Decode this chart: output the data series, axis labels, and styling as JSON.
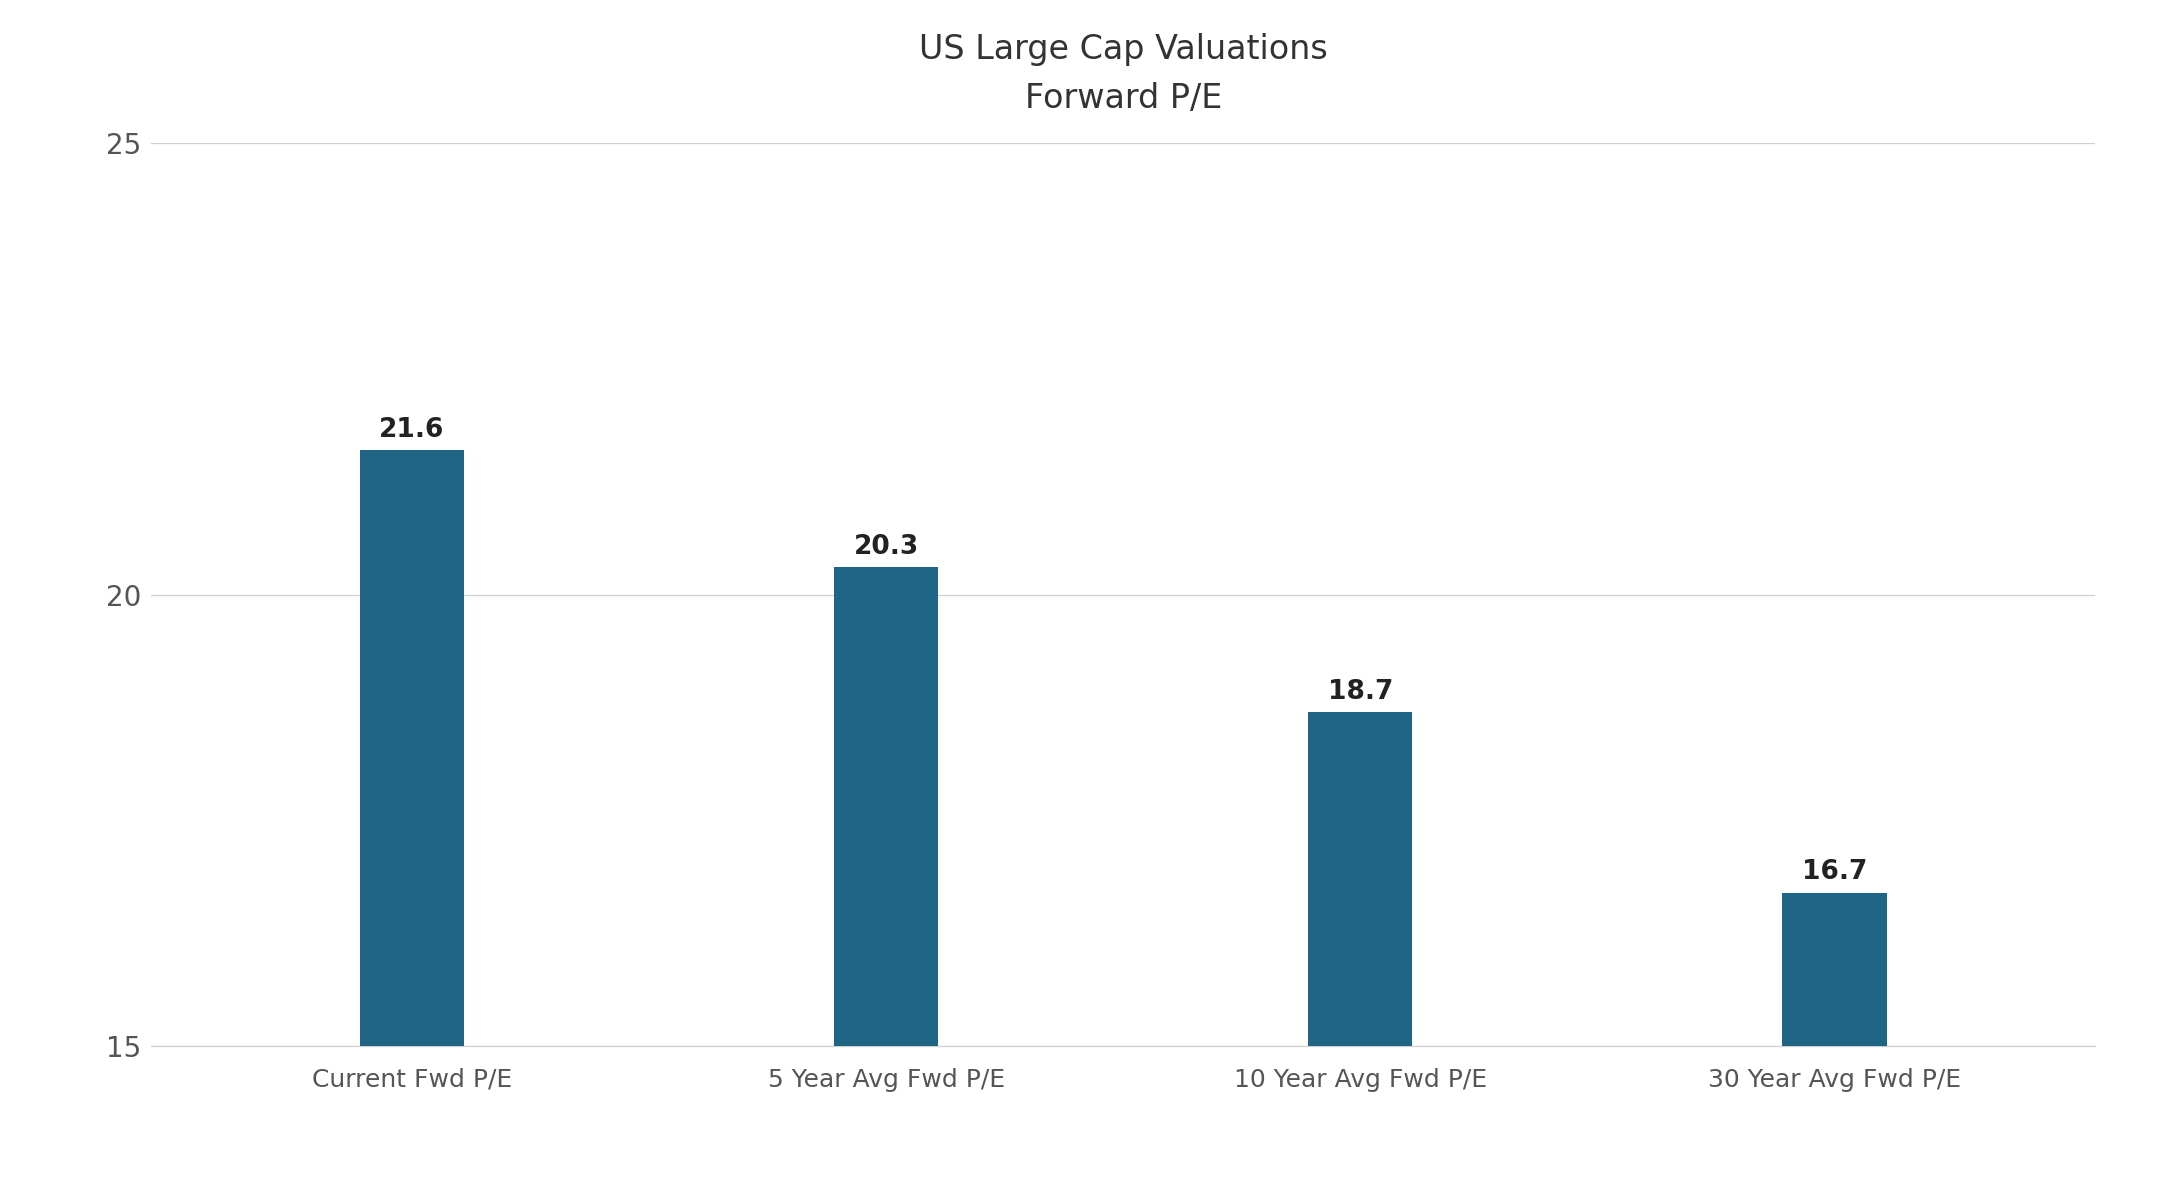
{
  "title_line1": "US Large Cap Valuations",
  "title_line2": "Forward P/E",
  "categories": [
    "Current Fwd P/E",
    "5 Year Avg Fwd P/E",
    "10 Year Avg Fwd P/E",
    "30 Year Avg Fwd P/E"
  ],
  "values": [
    21.6,
    20.3,
    18.7,
    16.7
  ],
  "bar_color": "#1f6585",
  "background_color": "#ffffff",
  "ylim": [
    15,
    25
  ],
  "yticks": [
    15,
    20,
    25
  ],
  "bar_width": 0.22,
  "title_fontsize": 24,
  "tick_label_fontsize": 18,
  "value_label_fontsize": 19,
  "ytick_fontsize": 20,
  "grid_color": "#d0d0d0",
  "grid_linewidth": 0.9,
  "spine_color": "#d0d0d0",
  "value_label_color": "#222222",
  "tick_color": "#555555"
}
